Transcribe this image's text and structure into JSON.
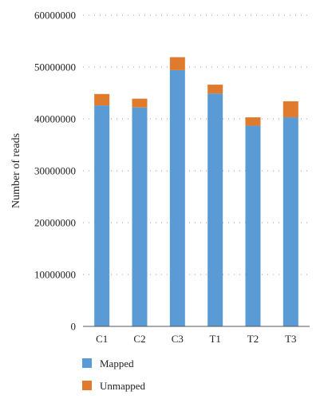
{
  "chart_data": {
    "type": "bar",
    "stacked": true,
    "categories": [
      "C1",
      "C2",
      "C3",
      "T1",
      "T2",
      "T3"
    ],
    "series": [
      {
        "name": "Mapped",
        "color": "#5b9bd5",
        "values": [
          42600000,
          42200000,
          49400000,
          44900000,
          38700000,
          40300000
        ]
      },
      {
        "name": "Unmapped",
        "color": "#e07a2c",
        "values": [
          2200000,
          1700000,
          2500000,
          1700000,
          1600000,
          3100000
        ]
      }
    ],
    "title": "",
    "xlabel": "",
    "ylabel": "Number of reads",
    "ylim": [
      0,
      60000000
    ],
    "yticks": [
      0,
      10000000,
      20000000,
      30000000,
      40000000,
      50000000,
      60000000
    ],
    "ytick_labels": [
      "0",
      "10000000",
      "20000000",
      "30000000",
      "40000000",
      "50000000",
      "60000000"
    ],
    "grid": "horizontal dotted",
    "legend_position": "bottom-left"
  }
}
